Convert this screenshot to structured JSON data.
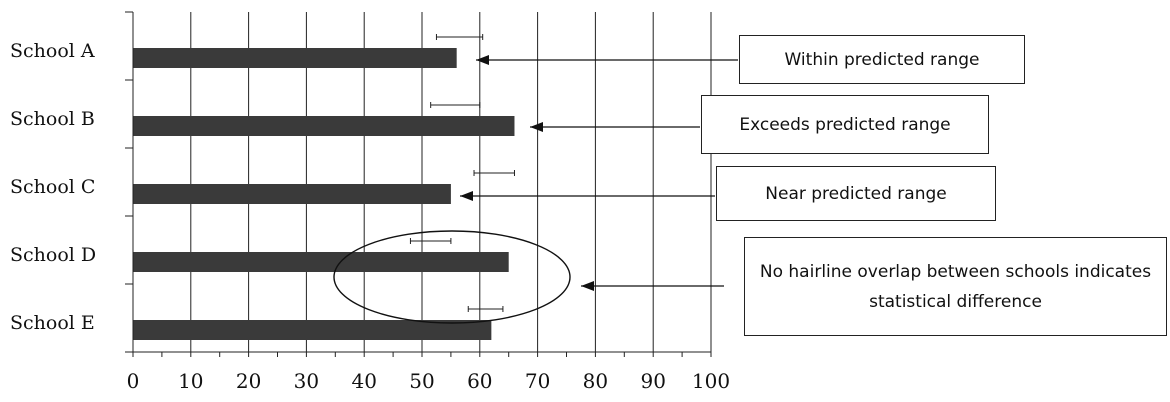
{
  "chart_data": {
    "type": "bar",
    "orientation": "horizontal",
    "categories": [
      "School A",
      "School B",
      "School C",
      "School D",
      "School E"
    ],
    "values": [
      56,
      66,
      55,
      65,
      62
    ],
    "error_ranges": [
      [
        52.5,
        60.5
      ],
      [
        51.5,
        60
      ],
      [
        59,
        66
      ],
      [
        48,
        55
      ],
      [
        58,
        64
      ]
    ],
    "x_ticks": [
      "0",
      "10",
      "20",
      "30",
      "40",
      "50",
      "60",
      "70",
      "80",
      "90",
      "100"
    ],
    "xlim": [
      0,
      100
    ],
    "grid": "vertical",
    "bar_color": "#3a3a3a",
    "annotations": [
      {
        "text": "Within predicted range",
        "points_to": "School A"
      },
      {
        "text": "Exceeds predicted range",
        "points_to": "School B"
      },
      {
        "text": "Near predicted range",
        "points_to": "School C"
      },
      {
        "text": "No hairline overlap between schools indicates statistical difference",
        "points_to": "School D and School E (circled)"
      }
    ]
  }
}
